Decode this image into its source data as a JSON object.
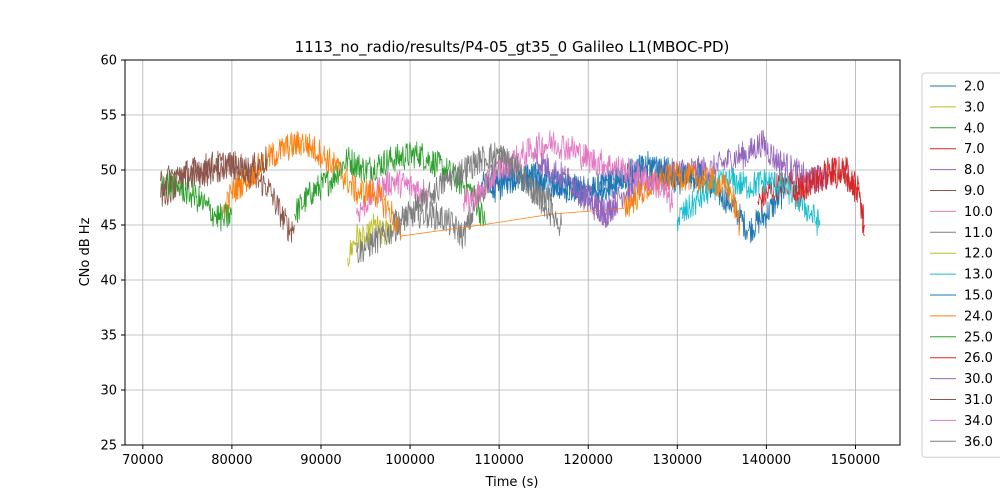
{
  "chart_data": {
    "type": "line",
    "title": "1113_no_radio/results/P4-05_gt35_0 Galileo L1(MBOC-PD)",
    "xlabel": "Time (s)",
    "ylabel": "CNo dB Hz",
    "xlim": [
      68000,
      155000
    ],
    "ylim": [
      25,
      60
    ],
    "xticks": [
      70000,
      80000,
      90000,
      100000,
      110000,
      120000,
      130000,
      140000,
      150000
    ],
    "xtick_labels": [
      "70000",
      "80000",
      "90000",
      "100000",
      "110000",
      "120000",
      "130000",
      "140000",
      "150000"
    ],
    "yticks": [
      25,
      30,
      35,
      40,
      45,
      50,
      55,
      60
    ],
    "ytick_labels": [
      "25",
      "30",
      "35",
      "40",
      "45",
      "50",
      "55",
      "60"
    ],
    "grid": true,
    "legend_position": "outside-right",
    "series": [
      {
        "name": "2.0",
        "color": "#1f77b4",
        "points": [
          [
            108000,
            48.5
          ],
          [
            112000,
            49.5
          ],
          [
            116000,
            48.5
          ],
          [
            120000,
            48
          ],
          [
            124000,
            49.5
          ],
          [
            128000,
            50
          ],
          [
            132000,
            49.5
          ],
          [
            136000,
            47
          ],
          [
            138000,
            44.5
          ],
          [
            140000,
            46
          ],
          [
            142000,
            48
          ]
        ]
      },
      {
        "name": "3.0",
        "color": "#bcbd22",
        "points": [
          [
            93000,
            42
          ],
          [
            94000,
            44
          ],
          [
            95000,
            43.5
          ],
          [
            96000,
            45
          ],
          [
            97000,
            44
          ],
          [
            98000,
            45
          ]
        ]
      },
      {
        "name": "4.0",
        "color": "#2ca02c",
        "points": [
          [
            87000,
            46
          ],
          [
            89000,
            48
          ],
          [
            91000,
            49
          ],
          [
            93000,
            51
          ],
          [
            95000,
            50
          ],
          [
            98000,
            51
          ],
          [
            101000,
            51.5
          ],
          [
            104000,
            50
          ],
          [
            107000,
            48
          ],
          [
            108500,
            45
          ]
        ]
      },
      {
        "name": "7.0",
        "color": "#d62728",
        "points": [
          [
            139000,
            47
          ],
          [
            141000,
            48.5
          ],
          [
            143000,
            49
          ],
          [
            145000,
            48.5
          ],
          [
            147000,
            50
          ],
          [
            149000,
            50
          ],
          [
            150500,
            48
          ],
          [
            151000,
            45
          ]
        ]
      },
      {
        "name": "8.0",
        "color": "#9467bd",
        "points": [
          [
            118000,
            49
          ],
          [
            120000,
            47
          ],
          [
            122000,
            46
          ],
          [
            124000,
            48
          ],
          [
            128000,
            49.5
          ],
          [
            131000,
            50
          ],
          [
            134000,
            50
          ],
          [
            136000,
            51
          ],
          [
            138000,
            51.5
          ],
          [
            139500,
            52.5
          ],
          [
            141000,
            51
          ],
          [
            143000,
            50
          ],
          [
            145000,
            49
          ],
          [
            147000,
            49.5
          ]
        ]
      },
      {
        "name": "9.0",
        "color": "#8c564b",
        "points": [
          [
            72000,
            47.5
          ],
          [
            74000,
            49
          ],
          [
            76000,
            49.5
          ],
          [
            78000,
            50
          ],
          [
            80000,
            50.5
          ],
          [
            82000,
            49.5
          ],
          [
            84000,
            48.5
          ],
          [
            85500,
            46
          ],
          [
            86500,
            44.5
          ],
          [
            87000,
            45
          ]
        ]
      },
      {
        "name": "10.0",
        "color": "#e377c2",
        "points": [
          [
            94000,
            46
          ],
          [
            96000,
            48
          ],
          [
            98000,
            49
          ],
          [
            100000,
            48.5
          ],
          [
            102000,
            48
          ]
        ]
      },
      {
        "name": "11.0",
        "color": "#7f7f7f",
        "points": [
          [
            94000,
            42.5
          ],
          [
            96000,
            43.5
          ],
          [
            98000,
            44.5
          ],
          [
            100000,
            46
          ],
          [
            102000,
            46
          ],
          [
            104000,
            45.5
          ],
          [
            106000,
            44
          ],
          [
            108000,
            48
          ],
          [
            110000,
            51
          ],
          [
            112000,
            50
          ],
          [
            114000,
            48
          ],
          [
            116000,
            47
          ]
        ]
      },
      {
        "name": "12.0",
        "color": "#bcbd22",
        "points": []
      },
      {
        "name": "13.0",
        "color": "#17becf",
        "points": [
          [
            130000,
            45.5
          ],
          [
            132000,
            47
          ],
          [
            134000,
            48.5
          ],
          [
            136000,
            49
          ],
          [
            138000,
            48.5
          ],
          [
            140000,
            49
          ],
          [
            142000,
            48.5
          ],
          [
            144000,
            47
          ],
          [
            146000,
            45
          ]
        ]
      },
      {
        "name": "15.0",
        "color": "#1f77b4",
        "points": [
          [
            109000,
            48
          ],
          [
            111000,
            49
          ],
          [
            114000,
            49.5
          ],
          [
            117000,
            48.5
          ],
          [
            121000,
            48
          ],
          [
            124000,
            49.5
          ],
          [
            127000,
            50.5
          ],
          [
            130000,
            49
          ],
          [
            133000,
            49.5
          ]
        ]
      },
      {
        "name": "24.0",
        "color": "#ff7f0e",
        "points": [
          [
            79000,
            46
          ],
          [
            80000,
            48
          ],
          [
            82000,
            49.5
          ],
          [
            84000,
            51
          ],
          [
            86000,
            52
          ],
          [
            88000,
            52.5
          ],
          [
            90000,
            51.5
          ],
          [
            92000,
            50
          ],
          [
            94000,
            48
          ],
          [
            96000,
            48
          ],
          [
            98000,
            46
          ],
          [
            99000,
            44
          ],
          [
            108000,
            45
          ],
          [
            116000,
            46
          ],
          [
            124000,
            46.5
          ],
          [
            126000,
            48
          ],
          [
            128000,
            49
          ],
          [
            130000,
            49.5
          ],
          [
            134000,
            49
          ],
          [
            136000,
            48
          ],
          [
            137000,
            45
          ]
        ]
      },
      {
        "name": "25.0",
        "color": "#2ca02c",
        "points": [
          [
            72000,
            49
          ],
          [
            74000,
            48.5
          ],
          [
            76000,
            47.5
          ],
          [
            78000,
            46
          ],
          [
            79000,
            45.5
          ],
          [
            80000,
            46
          ]
        ]
      },
      {
        "name": "26.0",
        "color": "#d62728",
        "points": [
          [
            143000,
            47.5
          ],
          [
            145000,
            49
          ],
          [
            147000,
            49.5
          ],
          [
            149000,
            49.5
          ],
          [
            150500,
            47.5
          ],
          [
            151000,
            44
          ]
        ]
      },
      {
        "name": "30.0",
        "color": "#9467bd",
        "points": [
          [
            114000,
            51
          ],
          [
            116000,
            50
          ],
          [
            118000,
            49
          ],
          [
            120000,
            47.5
          ],
          [
            122000,
            46
          ],
          [
            123000,
            47
          ]
        ]
      },
      {
        "name": "31.0",
        "color": "#8c564b",
        "points": [
          [
            72000,
            49
          ],
          [
            74000,
            49.5
          ],
          [
            76000,
            50
          ],
          [
            78000,
            50.5
          ],
          [
            80000,
            50.5
          ],
          [
            82000,
            50
          ],
          [
            84000,
            51
          ]
        ]
      },
      {
        "name": "34.0",
        "color": "#e377c2",
        "points": [
          [
            106000,
            47
          ],
          [
            108000,
            48
          ],
          [
            110000,
            50
          ],
          [
            112000,
            51
          ],
          [
            114000,
            52
          ],
          [
            116000,
            52.5
          ],
          [
            118000,
            52
          ],
          [
            120000,
            51
          ],
          [
            122000,
            50.5
          ],
          [
            124000,
            50
          ],
          [
            126000,
            49.5
          ],
          [
            128000,
            48.5
          ],
          [
            129500,
            47
          ]
        ]
      },
      {
        "name": "36.0",
        "color": "#7f7f7f",
        "points": [
          [
            98000,
            45
          ],
          [
            100000,
            46
          ],
          [
            102000,
            47.5
          ],
          [
            104000,
            49
          ],
          [
            106000,
            50
          ],
          [
            108000,
            51
          ],
          [
            110000,
            51.5
          ],
          [
            112000,
            50
          ],
          [
            114000,
            48
          ],
          [
            116000,
            46
          ],
          [
            117000,
            45
          ]
        ]
      }
    ]
  }
}
